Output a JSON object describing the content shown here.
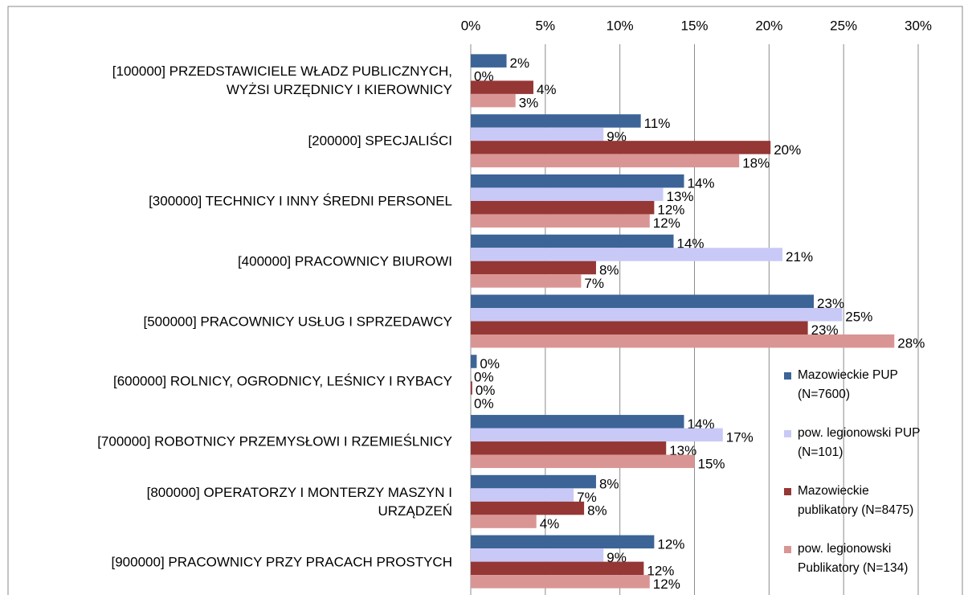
{
  "chart_data": {
    "type": "bar",
    "orientation": "horizontal",
    "categories": [
      "[100000] PRZEDSTAWICIELE WŁADZ PUBLICZNYCH,\nWYŻSI URZĘDNICY I KIEROWNICY",
      "[200000] SPECJALIŚCI",
      "[300000] TECHNICY I INNY ŚREDNI PERSONEL",
      "[400000] PRACOWNICY BIUROWI",
      "[500000] PRACOWNICY USŁUG I SPRZEDAWCY",
      "[600000] ROLNICY, OGRODNICY, LEŚNICY I RYBACY",
      "[700000] ROBOTNICY PRZEMYSŁOWI I RZEMIEŚLNICY",
      "[800000] OPERATORZY I MONTERZY MASZYN I\nURZĄDZEŃ",
      "[900000] PRACOWNICY PRZY PRACACH PROSTYCH"
    ],
    "series": [
      {
        "name": "Mazowieckie PUP\n(N=7600)",
        "color": "#3c6497",
        "values": [
          2.4,
          11.4,
          14.3,
          13.6,
          23.0,
          0.4,
          14.3,
          8.4,
          12.3
        ],
        "value_labels": [
          "2%",
          "11%",
          "14%",
          "14%",
          "23%",
          "0%",
          "14%",
          "8%",
          "12%"
        ]
      },
      {
        "name": "pow. legionowski PUP\n(N=101)",
        "color": "#c9c9f7",
        "values": [
          0,
          8.9,
          12.9,
          20.9,
          24.9,
          0,
          16.9,
          6.9,
          8.9
        ],
        "value_labels": [
          "0%",
          "9%",
          "13%",
          "21%",
          "25%",
          "0%",
          "17%",
          "7%",
          "9%"
        ]
      },
      {
        "name": "Mazowieckie\npublikatory (N=8475)",
        "color": "#953735",
        "values": [
          4.2,
          20.1,
          12.3,
          8.4,
          22.6,
          0.1,
          13.1,
          7.6,
          11.6
        ],
        "value_labels": [
          "4%",
          "20%",
          "12%",
          "8%",
          "23%",
          "0%",
          "13%",
          "8%",
          "12%"
        ]
      },
      {
        "name": "pow. legionowski\nPublikatory (N=134)",
        "color": "#d99594",
        "values": [
          3.0,
          18.0,
          12.0,
          7.4,
          28.4,
          0,
          15.0,
          4.4,
          12.0
        ],
        "value_labels": [
          "3%",
          "18%",
          "12%",
          "7%",
          "28%",
          "0%",
          "15%",
          "4%",
          "12%"
        ]
      }
    ],
    "xlim": [
      0,
      30
    ],
    "xticks": [
      {
        "value": 0,
        "label": "0%"
      },
      {
        "value": 5,
        "label": "5%"
      },
      {
        "value": 10,
        "label": "10%"
      },
      {
        "value": 15,
        "label": "15%"
      },
      {
        "value": 20,
        "label": "20%"
      },
      {
        "value": 25,
        "label": "25%"
      },
      {
        "value": 30,
        "label": "30%"
      }
    ],
    "grid": true,
    "legend": "right"
  }
}
